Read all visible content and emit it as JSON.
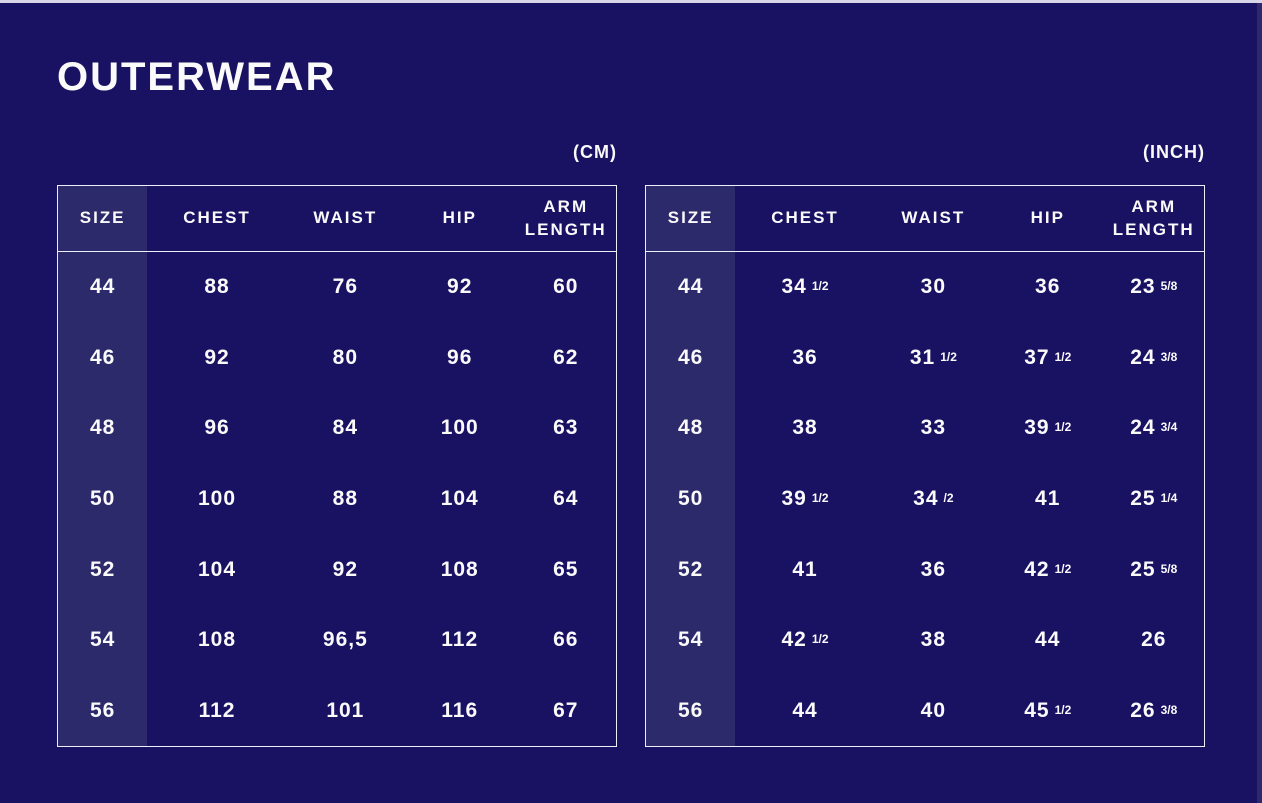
{
  "page": {
    "title": "OUTERWEAR"
  },
  "colors": {
    "background": "#191263",
    "size_column_highlight": "#2d2a6c",
    "table_border": "#eeeef6",
    "text": "#fafafa",
    "top_edge_strip": "#d9d6e8"
  },
  "chart_data": [
    {
      "type": "table",
      "unit_label": "(CM)",
      "columns": [
        "SIZE",
        "CHEST",
        "WAIST",
        "HIP",
        "ARM LENGTH"
      ],
      "rows": [
        [
          "44",
          "88",
          "76",
          "92",
          "60"
        ],
        [
          "46",
          "92",
          "80",
          "96",
          "62"
        ],
        [
          "48",
          "96",
          "84",
          "100",
          "63"
        ],
        [
          "50",
          "100",
          "88",
          "104",
          "64"
        ],
        [
          "52",
          "104",
          "92",
          "108",
          "65"
        ],
        [
          "54",
          "108",
          "96,5",
          "112",
          "66"
        ],
        [
          "56",
          "112",
          "101",
          "116",
          "67"
        ]
      ]
    },
    {
      "type": "table",
      "unit_label": "(INCH)",
      "columns": [
        "SIZE",
        "CHEST",
        "WAIST",
        "HIP",
        "ARM LENGTH"
      ],
      "rows": [
        [
          "44",
          "34 1/2",
          "30",
          "36",
          "23 5/8"
        ],
        [
          "46",
          "36",
          "31 1/2",
          "37 1/2",
          "24 3/8"
        ],
        [
          "48",
          "38",
          "33",
          "39 1/2",
          "24 3/4"
        ],
        [
          "50",
          "39 1/2",
          "34 /2",
          "41",
          "25 1/4"
        ],
        [
          "52",
          "41",
          "36",
          "42 1/2",
          "25 5/8"
        ],
        [
          "54",
          "42 1/2",
          "38",
          "44",
          "26"
        ],
        [
          "56",
          "44",
          "40",
          "45 1/2",
          "26 3/8"
        ]
      ]
    }
  ]
}
